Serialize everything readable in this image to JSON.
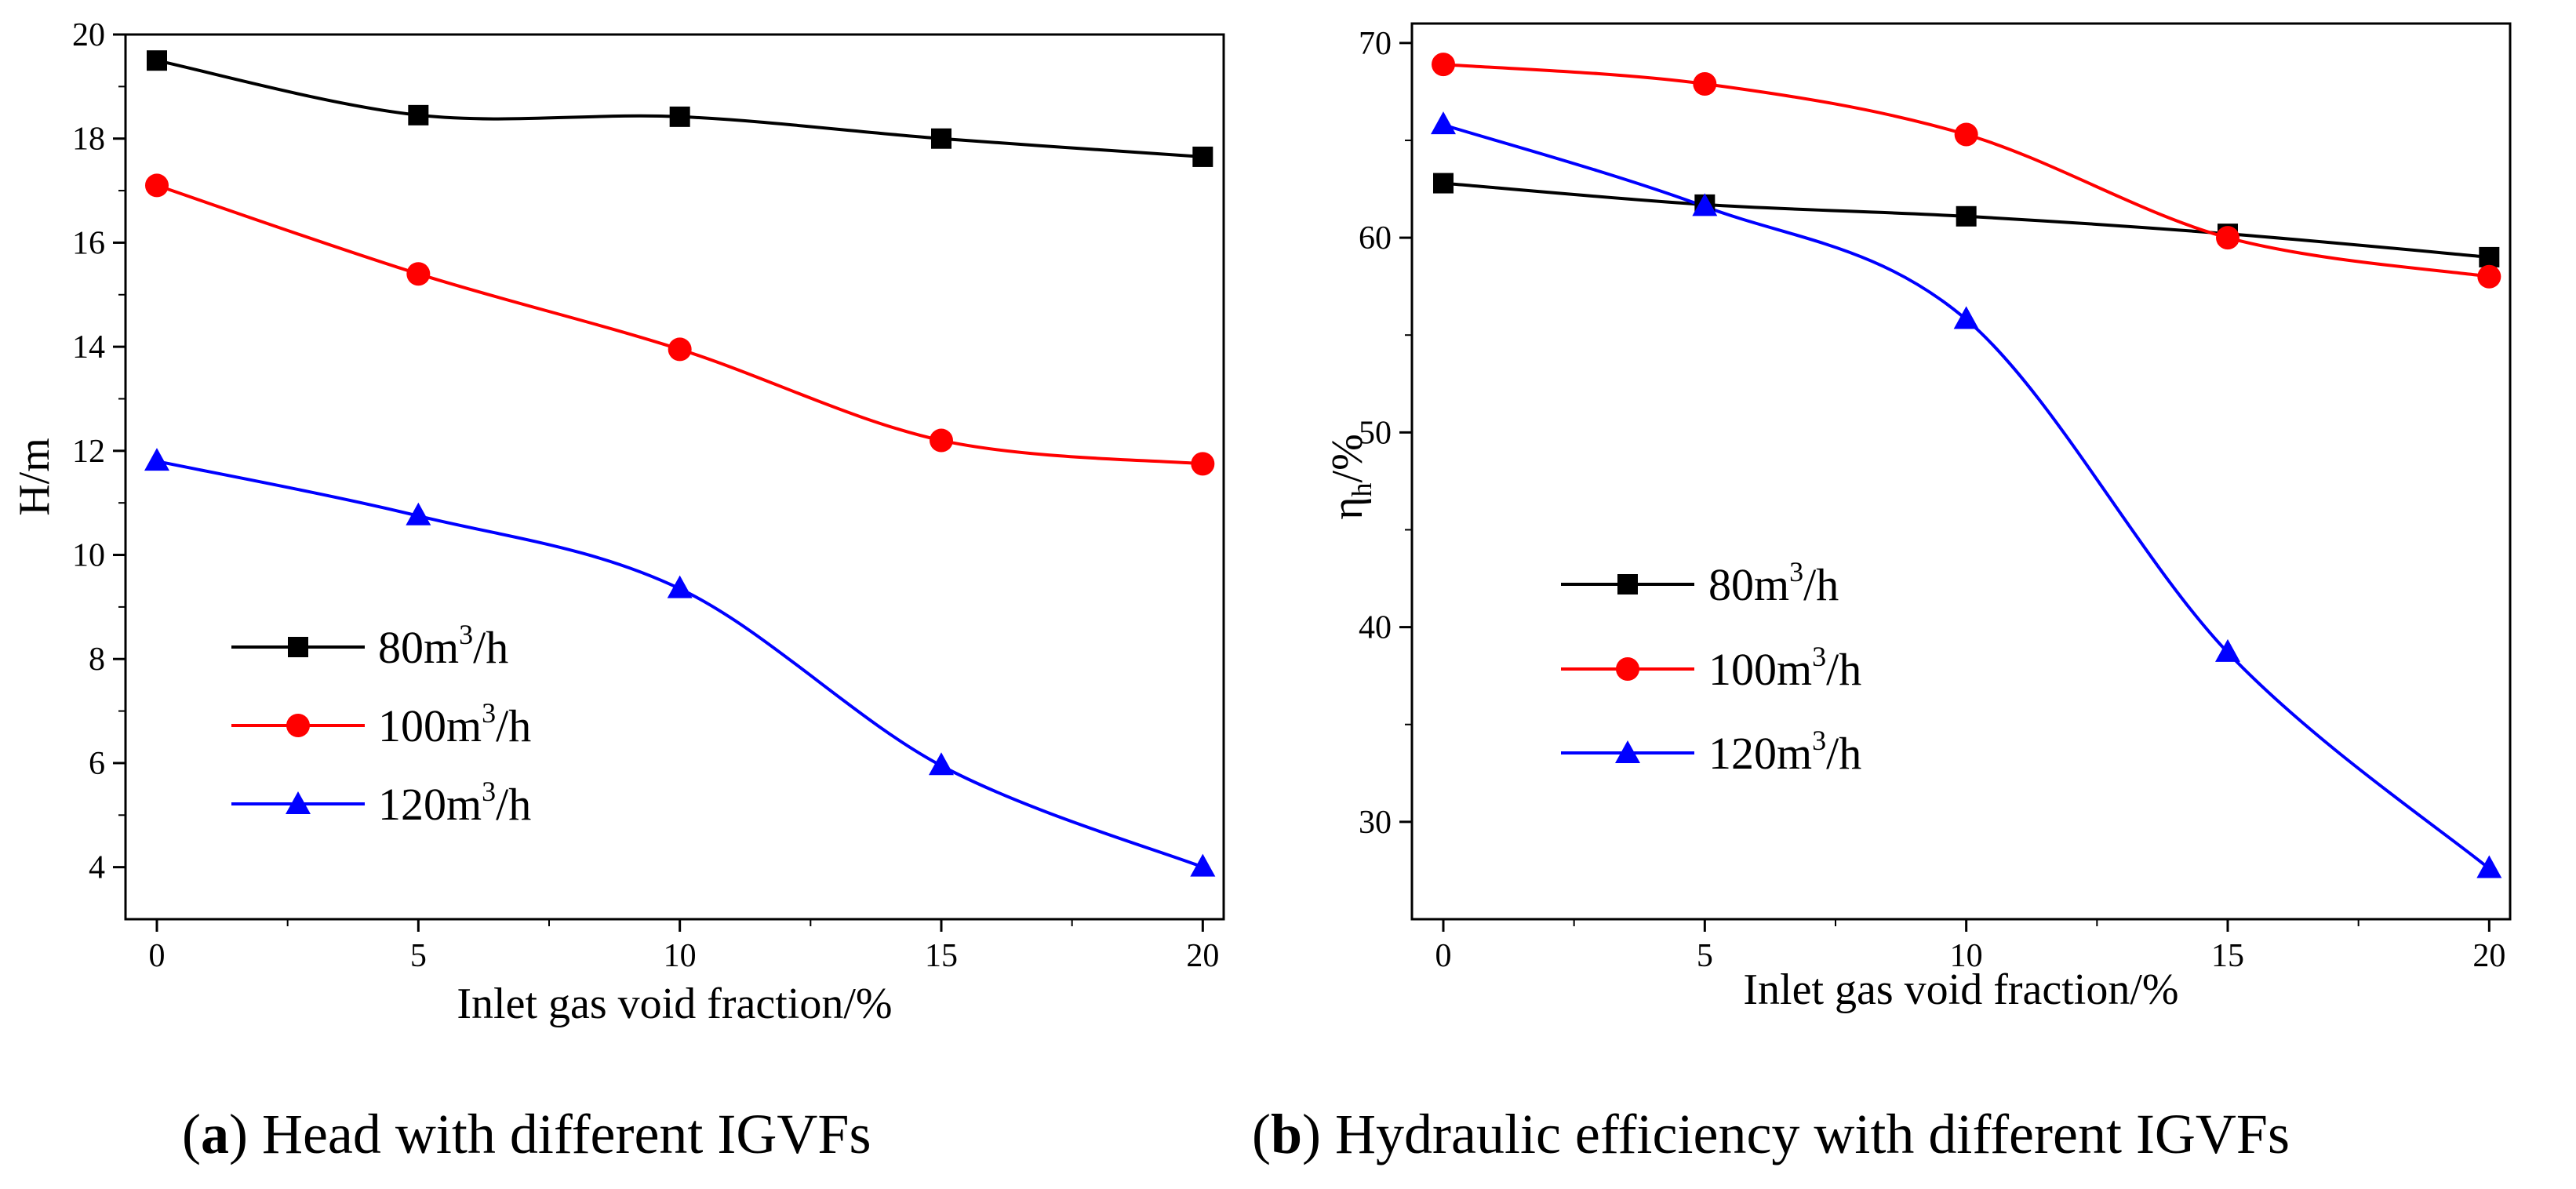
{
  "chart_data": [
    {
      "type": "line",
      "panel_letter": "a",
      "caption_title": "Head with different IGVFs",
      "xlabel": "Inlet gas void fraction/%",
      "ylabel": "H/m",
      "xlim": [
        -0.6,
        20.4
      ],
      "ylim": [
        3,
        20
      ],
      "xticks": [
        0,
        5,
        10,
        15,
        20
      ],
      "yticks": [
        4,
        6,
        8,
        10,
        12,
        14,
        16,
        18,
        20
      ],
      "legend_position": "lower-left",
      "x": [
        0,
        5,
        10,
        15,
        20
      ],
      "series": [
        {
          "name": "80m",
          "name_sup": "3",
          "name_suffix": "/h",
          "color": "#000000",
          "marker": "square",
          "values": [
            19.5,
            18.45,
            18.42,
            18.0,
            17.65
          ]
        },
        {
          "name": "100m",
          "name_sup": "3",
          "name_suffix": "/h",
          "color": "#ff0000",
          "marker": "circle",
          "values": [
            17.1,
            15.4,
            13.95,
            12.2,
            11.75
          ]
        },
        {
          "name": "120m",
          "name_sup": "3",
          "name_suffix": "/h",
          "color": "#0000ff",
          "marker": "triangle",
          "values": [
            11.8,
            10.75,
            9.35,
            5.95,
            4.0
          ]
        }
      ]
    },
    {
      "type": "line",
      "panel_letter": "b",
      "caption_title": "Hydraulic efficiency with different IGVFs",
      "xlabel": "Inlet gas void fraction/%",
      "ylabel": "η",
      "ylabel_sub": "h",
      "ylabel_suffix": "/%",
      "xlim": [
        -0.6,
        20.4
      ],
      "ylim": [
        25,
        71
      ],
      "xticks": [
        0,
        5,
        10,
        15,
        20
      ],
      "yticks": [
        30,
        40,
        50,
        60,
        70
      ],
      "legend_position": "middle-left",
      "x": [
        0,
        5,
        10,
        15,
        20
      ],
      "series": [
        {
          "name": "80m",
          "name_sup": "3",
          "name_suffix": "/h",
          "color": "#000000",
          "marker": "square",
          "values": [
            62.8,
            61.7,
            61.1,
            60.2,
            59.0
          ]
        },
        {
          "name": "100m",
          "name_sup": "3",
          "name_suffix": "/h",
          "color": "#ff0000",
          "marker": "circle",
          "values": [
            68.9,
            67.9,
            65.3,
            60.0,
            58.0
          ]
        },
        {
          "name": "120m",
          "name_sup": "3",
          "name_suffix": "/h",
          "color": "#0000ff",
          "marker": "triangle",
          "values": [
            65.8,
            61.6,
            55.8,
            38.7,
            27.6
          ]
        }
      ]
    }
  ]
}
